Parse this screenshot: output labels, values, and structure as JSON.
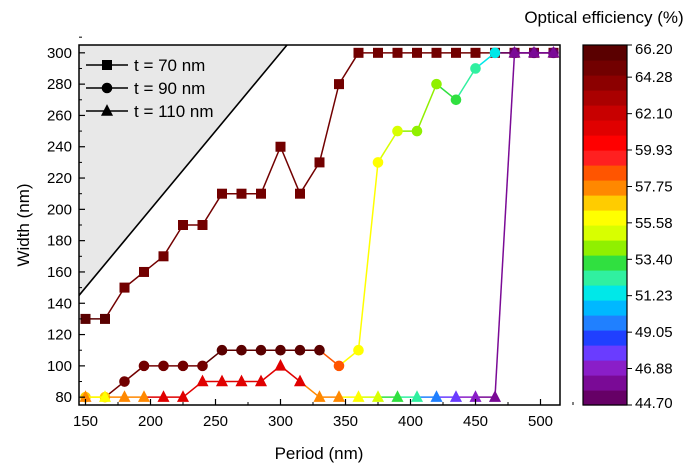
{
  "chart_data": {
    "type": "scatter",
    "x": [
      150,
      165,
      180,
      195,
      210,
      225,
      240,
      255,
      270,
      285,
      300,
      315,
      330,
      345,
      360,
      375,
      390,
      405,
      420,
      435,
      450,
      465,
      480,
      495,
      510
    ],
    "series": [
      {
        "name": "t = 70 nm",
        "marker": "square",
        "values": [
          130,
          130,
          150,
          160,
          170,
          190,
          190,
          210,
          210,
          210,
          240,
          210,
          230,
          280,
          300,
          300,
          300,
          300,
          300,
          300,
          300,
          300,
          300,
          300,
          300
        ],
        "efficiency": [
          65.6,
          65.6,
          65.3,
          65.3,
          65.3,
          65.3,
          65.3,
          65.3,
          65.3,
          65.3,
          65.3,
          65.3,
          65.3,
          65.3,
          65.3,
          65.3,
          65.3,
          65.3,
          65.3,
          65.3,
          65.3,
          65.3,
          65.3,
          65.3,
          65.3
        ]
      },
      {
        "name": "t = 90 nm",
        "marker": "circle",
        "values": [
          80,
          80,
          90,
          100,
          100,
          100,
          100,
          110,
          110,
          110,
          110,
          110,
          110,
          100,
          110,
          230,
          250,
          250,
          280,
          270,
          290,
          300,
          300,
          300,
          300
        ],
        "efficiency": [
          56.5,
          56.5,
          64.9,
          65.3,
          65.3,
          65.3,
          65.3,
          66.2,
          66.2,
          66.2,
          66.2,
          66.2,
          66.2,
          58.2,
          56.0,
          56.0,
          55.2,
          54.2,
          53.8,
          52.8,
          52.5,
          51.7,
          45.4,
          45.4,
          45.4
        ]
      },
      {
        "name": "t = 110 nm",
        "marker": "triangle",
        "values": [
          80,
          80,
          80,
          80,
          80,
          80,
          90,
          90,
          90,
          90,
          100,
          90,
          80,
          80,
          80,
          80,
          80,
          80,
          80,
          80,
          80,
          80,
          300,
          300,
          300
        ],
        "efficiency": [
          57.3,
          56.2,
          57.3,
          57.3,
          61.0,
          61.0,
          61.0,
          61.0,
          61.0,
          61.0,
          61.0,
          61.0,
          57.3,
          57.3,
          55.8,
          54.7,
          53.6,
          52.1,
          49.8,
          48.2,
          46.5,
          45.6,
          45.6,
          45.6,
          45.6
        ]
      }
    ],
    "xlabel": "Period (nm)",
    "ylabel": "Width (nm)",
    "xlim": [
      145,
      515
    ],
    "ylim": [
      75,
      305
    ],
    "xticks": [
      150,
      200,
      250,
      300,
      350,
      400,
      450,
      500
    ],
    "yticks": [
      80,
      100,
      120,
      140,
      160,
      180,
      200,
      220,
      240,
      260,
      280,
      300
    ],
    "forbidden_region": {
      "boundary": "width = period",
      "fill": "#e8e8e8"
    },
    "legend_position": "top-left",
    "colorbar": {
      "title": "Optical efficiency (%)",
      "min": 44.7,
      "max": 66.2,
      "tick_labels": [
        "66.20",
        "64.28",
        "62.10",
        "59.93",
        "57.75",
        "55.58",
        "53.40",
        "51.23",
        "49.05",
        "46.88",
        "44.70"
      ],
      "tick_values": [
        66.2,
        64.28,
        62.1,
        59.93,
        57.75,
        55.58,
        53.4,
        51.23,
        49.05,
        46.88,
        44.7
      ],
      "colors_bottom_to_top": [
        "#660066",
        "#7a0a96",
        "#8a1ec8",
        "#6a3cff",
        "#2040ff",
        "#2080ff",
        "#00b8ff",
        "#00e8e8",
        "#30f0a0",
        "#30e040",
        "#90f000",
        "#d8ff00",
        "#ffff00",
        "#ffcc00",
        "#ff8800",
        "#ff5500",
        "#ff2020",
        "#ff0000",
        "#e00000",
        "#c80000",
        "#aa0000",
        "#8c0000",
        "#720000",
        "#5a0000"
      ]
    }
  }
}
